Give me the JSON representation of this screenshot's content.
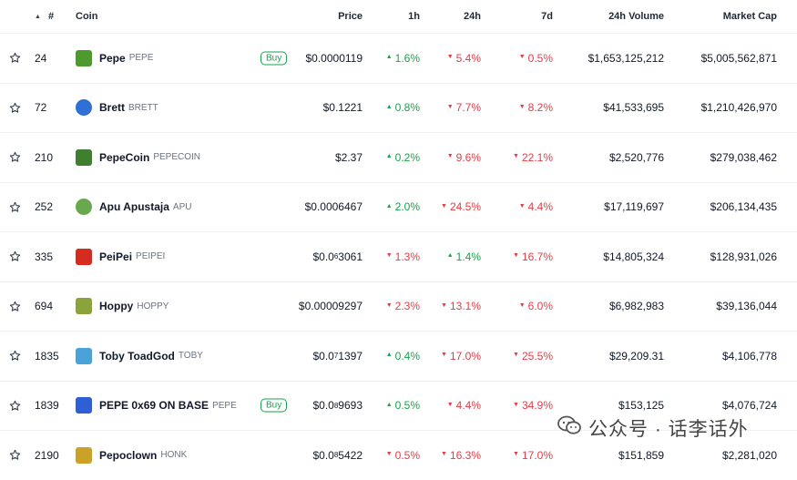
{
  "header": {
    "rank": "#",
    "coin": "Coin",
    "price": "Price",
    "h1": "1h",
    "h24": "24h",
    "d7": "7d",
    "volume": "24h Volume",
    "mcap": "Market Cap"
  },
  "buy_label": "Buy",
  "rows": [
    {
      "rank": "24",
      "name": "Pepe",
      "symbol": "PEPE",
      "logo_color": "#4f9a2f",
      "buy": true,
      "price": "$0.0000119",
      "h1": "1.6%",
      "h1_dir": "up",
      "h24": "5.4%",
      "h24_dir": "down",
      "d7": "0.5%",
      "d7_dir": "down",
      "volume": "$1,653,125,212",
      "mcap": "$5,005,562,871"
    },
    {
      "rank": "72",
      "name": "Brett",
      "symbol": "BRETT",
      "logo_color": "#2f6fd6",
      "buy": false,
      "price": "$0.1221",
      "h1": "0.8%",
      "h1_dir": "up",
      "h24": "7.7%",
      "h24_dir": "down",
      "d7": "8.2%",
      "d7_dir": "down",
      "volume": "$41,533,695",
      "mcap": "$1,210,426,970"
    },
    {
      "rank": "210",
      "name": "PepeCoin",
      "symbol": "PEPECOIN",
      "logo_color": "#3f7f2f",
      "buy": false,
      "price": "$2.37",
      "h1": "0.2%",
      "h1_dir": "up",
      "h24": "9.6%",
      "h24_dir": "down",
      "d7": "22.1%",
      "d7_dir": "down",
      "volume": "$2,520,776",
      "mcap": "$279,038,462"
    },
    {
      "rank": "252",
      "name": "Apu Apustaja",
      "symbol": "APU",
      "logo_color": "#6aa84f",
      "buy": false,
      "price": "$0.0006467",
      "h1": "2.0%",
      "h1_dir": "up",
      "h24": "24.5%",
      "h24_dir": "down",
      "d7": "4.4%",
      "d7_dir": "down",
      "volume": "$17,119,697",
      "mcap": "$206,134,435"
    },
    {
      "rank": "335",
      "name": "PeiPei",
      "symbol": "PEIPEI",
      "logo_color": "#d62b1f",
      "buy": false,
      "price_prefix": "$0.0",
      "price_sub": "6",
      "price_digits": "3061",
      "h1": "1.3%",
      "h1_dir": "down",
      "h24": "1.4%",
      "h24_dir": "up",
      "d7": "16.7%",
      "d7_dir": "down",
      "volume": "$14,805,324",
      "mcap": "$128,931,026"
    },
    {
      "rank": "694",
      "name": "Hoppy",
      "symbol": "HOPPY",
      "logo_color": "#8aa33a",
      "buy": false,
      "price": "$0.00009297",
      "h1": "2.3%",
      "h1_dir": "down",
      "h24": "13.1%",
      "h24_dir": "down",
      "d7": "6.0%",
      "d7_dir": "down",
      "volume": "$6,982,983",
      "mcap": "$39,136,044"
    },
    {
      "rank": "1835",
      "name": "Toby ToadGod",
      "symbol": "TOBY",
      "logo_color": "#4aa3d8",
      "buy": false,
      "price_prefix": "$0.0",
      "price_sub": "7",
      "price_digits": "1397",
      "h1": "0.4%",
      "h1_dir": "up",
      "h24": "17.0%",
      "h24_dir": "down",
      "d7": "25.5%",
      "d7_dir": "down",
      "volume": "$29,209.31",
      "mcap": "$4,106,778"
    },
    {
      "rank": "1839",
      "name": "PEPE 0x69 ON BASE",
      "symbol": "PEPE",
      "logo_color": "#2f5fd6",
      "buy": true,
      "price_prefix": "$0.0",
      "price_sub": "8",
      "price_digits": "9693",
      "h1": "0.5%",
      "h1_dir": "up",
      "h24": "4.4%",
      "h24_dir": "down",
      "d7": "34.9%",
      "d7_dir": "down",
      "volume": "$153,125",
      "mcap": "$4,076,724"
    },
    {
      "rank": "2190",
      "name": "Pepoclown",
      "symbol": "HONK",
      "logo_color": "#c9a227",
      "buy": false,
      "price_prefix": "$0.0",
      "price_sub": "8",
      "price_digits": "5422",
      "h1": "0.5%",
      "h1_dir": "down",
      "h24": "16.3%",
      "h24_dir": "down",
      "d7": "17.0%",
      "d7_dir": "down",
      "volume": "$151,859",
      "mcap": "$2,281,020"
    }
  ],
  "watermark": {
    "text": "公众号 · 话李话外",
    "icon": "wechat-icon"
  },
  "colors": {
    "up": "#16a34a",
    "down": "#ea3943"
  }
}
